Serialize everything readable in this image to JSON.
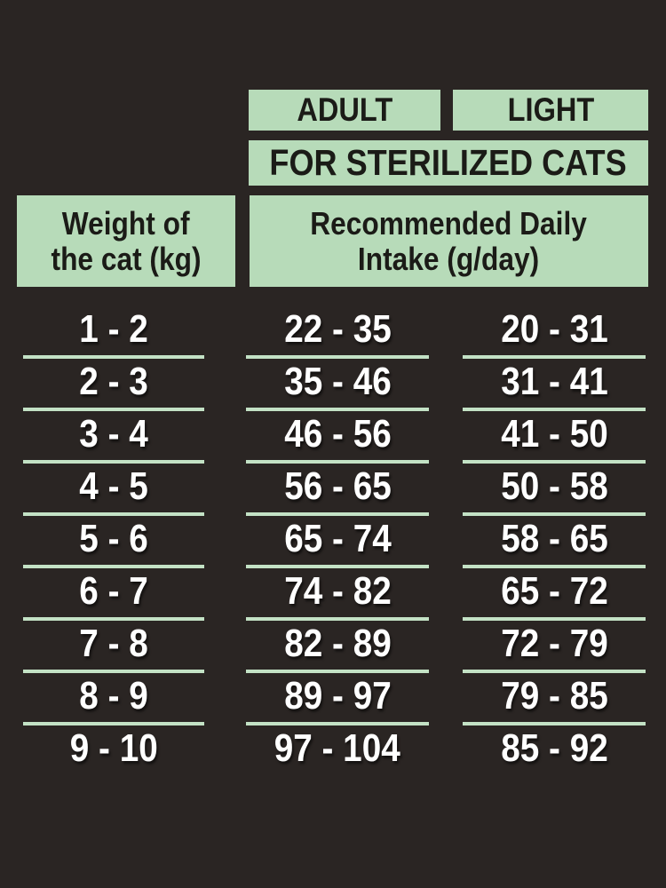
{
  "colors": {
    "background": "#2a2523",
    "box_green": "#b7dbb9",
    "line_green": "#c3e2c5",
    "header_text": "#1b1b17",
    "data_text": "#ffffff"
  },
  "header": {
    "adult": "ADULT",
    "light": "LIGHT",
    "subtitle": "FOR STERILIZED CATS",
    "weight_line1": "Weight of",
    "weight_line2": "the cat (kg)",
    "intake_line1": "Recommended Daily",
    "intake_line2": "Intake (g/day)"
  },
  "chart_data": {
    "type": "table",
    "title": "FOR STERILIZED CATS",
    "columns": [
      "Weight of the cat (kg)",
      "ADULT - Recommended Daily Intake (g/day)",
      "LIGHT - Recommended Daily Intake (g/day)"
    ],
    "rows": [
      [
        "1 - 2",
        "22 - 35",
        "20 - 31"
      ],
      [
        "2 - 3",
        "35 - 46",
        "31 - 41"
      ],
      [
        "3 - 4",
        "46 - 56",
        "41 - 50"
      ],
      [
        "4 - 5",
        "56 - 65",
        "50 - 58"
      ],
      [
        "5 - 6",
        "65 - 74",
        "58 - 65"
      ],
      [
        "6 - 7",
        "74 - 82",
        "65 - 72"
      ],
      [
        "7 - 8",
        "82 - 89",
        "72 - 79"
      ],
      [
        "8 - 9",
        "89 - 97",
        "79 - 85"
      ],
      [
        "9 - 10",
        "97 - 104",
        "85 - 92"
      ]
    ]
  }
}
